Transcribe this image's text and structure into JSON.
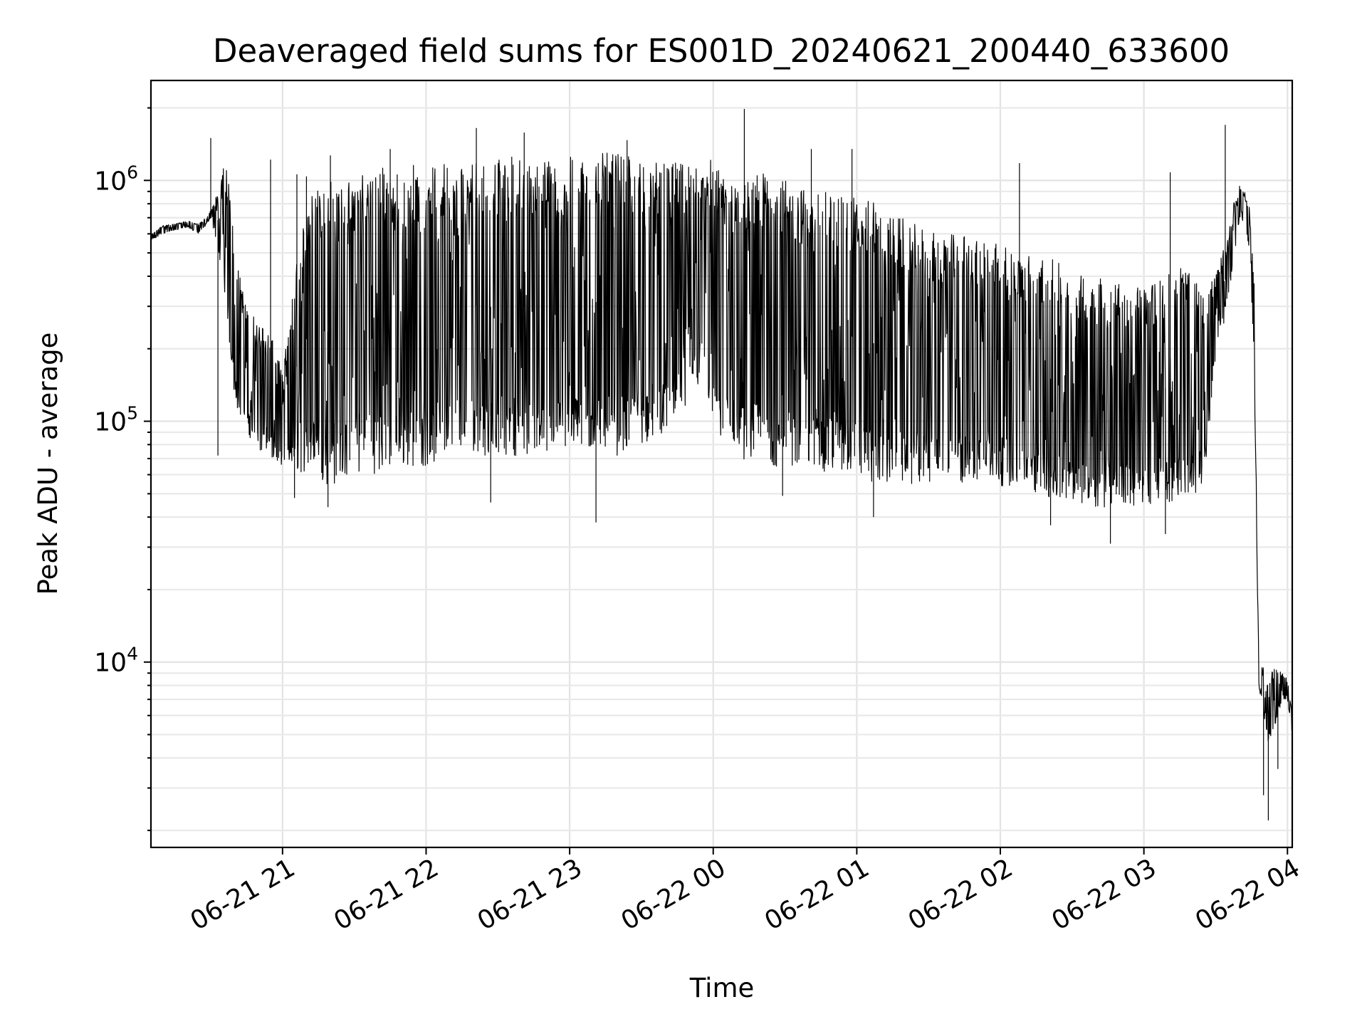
{
  "chart_data": {
    "type": "line",
    "title": "Deaveraged field sums for ES001D_20240621_200440_633600",
    "xlabel": "Time",
    "ylabel": "Peak ADU - average",
    "yscale": "log",
    "xlim": [
      "2024-06-21 20:05",
      "2024-06-22 04:02"
    ],
    "ylim": [
      1700,
      2600000
    ],
    "grid": true,
    "line_color": "#000000",
    "x_ticks": [
      {
        "value": "2024-06-21 21:00",
        "label": "06-21 21"
      },
      {
        "value": "2024-06-21 22:00",
        "label": "06-21 22"
      },
      {
        "value": "2024-06-21 23:00",
        "label": "06-21 23"
      },
      {
        "value": "2024-06-22 00:00",
        "label": "06-22 00"
      },
      {
        "value": "2024-06-22 01:00",
        "label": "06-22 01"
      },
      {
        "value": "2024-06-22 02:00",
        "label": "06-22 02"
      },
      {
        "value": "2024-06-22 03:00",
        "label": "06-22 03"
      },
      {
        "value": "2024-06-22 04:00",
        "label": "06-22 04"
      }
    ],
    "y_ticks": [
      {
        "value": 10000,
        "base": "10",
        "exponent": "4"
      },
      {
        "value": 100000,
        "base": "10",
        "exponent": "5"
      },
      {
        "value": 1000000,
        "base": "10",
        "exponent": "6"
      }
    ],
    "series": [
      {
        "x": [
          "2024-06-21 20:05",
          "2024-06-21 20:10",
          "2024-06-21 20:15",
          "2024-06-21 20:20",
          "2024-06-21 20:25",
          "2024-06-21 20:28",
          "2024-06-21 20:30",
          "2024-06-21 20:33",
          "2024-06-21 20:35",
          "2024-06-21 20:38",
          "2024-06-21 20:40",
          "2024-06-21 20:45",
          "2024-06-21 20:50",
          "2024-06-21 20:55",
          "2024-06-21 21:00",
          "2024-06-21 21:05",
          "2024-06-21 21:10",
          "2024-06-21 21:15",
          "2024-06-21 21:20",
          "2024-06-21 21:25",
          "2024-06-21 21:30",
          "2024-06-21 21:35",
          "2024-06-21 21:40",
          "2024-06-21 21:45",
          "2024-06-21 21:50",
          "2024-06-21 21:55",
          "2024-06-21 22:00",
          "2024-06-21 22:05",
          "2024-06-21 22:10",
          "2024-06-21 22:15",
          "2024-06-21 22:20",
          "2024-06-21 22:25",
          "2024-06-21 22:30",
          "2024-06-21 22:35",
          "2024-06-21 22:40",
          "2024-06-21 22:45",
          "2024-06-21 22:50",
          "2024-06-21 22:55",
          "2024-06-21 23:00",
          "2024-06-21 23:05",
          "2024-06-21 23:10",
          "2024-06-21 23:15",
          "2024-06-21 23:20",
          "2024-06-21 23:25",
          "2024-06-21 23:30",
          "2024-06-21 23:35",
          "2024-06-21 23:40",
          "2024-06-21 23:45",
          "2024-06-21 23:50",
          "2024-06-21 23:55",
          "2024-06-22 00:00",
          "2024-06-22 00:05",
          "2024-06-22 00:10",
          "2024-06-22 00:15",
          "2024-06-22 00:20",
          "2024-06-22 00:25",
          "2024-06-22 00:30",
          "2024-06-22 00:35",
          "2024-06-22 00:40",
          "2024-06-22 00:45",
          "2024-06-22 00:50",
          "2024-06-22 00:55",
          "2024-06-22 01:00",
          "2024-06-22 01:05",
          "2024-06-22 01:10",
          "2024-06-22 01:15",
          "2024-06-22 01:20",
          "2024-06-22 01:25",
          "2024-06-22 01:30",
          "2024-06-22 01:35",
          "2024-06-22 01:40",
          "2024-06-22 01:45",
          "2024-06-22 01:50",
          "2024-06-22 01:55",
          "2024-06-22 02:00",
          "2024-06-22 02:05",
          "2024-06-22 02:10",
          "2024-06-22 02:15",
          "2024-06-22 02:20",
          "2024-06-22 02:25",
          "2024-06-22 02:30",
          "2024-06-22 02:35",
          "2024-06-22 02:40",
          "2024-06-22 02:45",
          "2024-06-22 02:50",
          "2024-06-22 02:55",
          "2024-06-22 03:00",
          "2024-06-22 03:05",
          "2024-06-22 03:10",
          "2024-06-22 03:15",
          "2024-06-22 03:20",
          "2024-06-22 03:25",
          "2024-06-22 03:30",
          "2024-06-22 03:35",
          "2024-06-22 03:38",
          "2024-06-22 03:40",
          "2024-06-22 03:42",
          "2024-06-22 03:44",
          "2024-06-22 03:46",
          "2024-06-22 03:48",
          "2024-06-22 03:50",
          "2024-06-22 03:52",
          "2024-06-22 03:54",
          "2024-06-22 03:56",
          "2024-06-22 03:58",
          "2024-06-22 04:00",
          "2024-06-22 04:02"
        ],
        "low": [
          560000,
          600000,
          620000,
          640000,
          600000,
          650000,
          700000,
          520000,
          400000,
          200000,
          120000,
          90000,
          75000,
          70000,
          65000,
          62000,
          60000,
          60000,
          52000,
          58000,
          60000,
          62000,
          60000,
          62000,
          65000,
          64000,
          65000,
          68000,
          72000,
          75000,
          75000,
          72000,
          72000,
          72000,
          72000,
          72000,
          72000,
          72000,
          75000,
          75000,
          75000,
          75000,
          72000,
          75000,
          80000,
          85000,
          90000,
          95000,
          110000,
          150000,
          85000,
          80000,
          70000,
          68000,
          70000,
          65000,
          63000,
          63000,
          62000,
          62000,
          60000,
          58000,
          58000,
          55000,
          55000,
          55000,
          55000,
          55000,
          55000,
          55000,
          55000,
          54000,
          54000,
          55000,
          54000,
          53000,
          52000,
          50000,
          48000,
          46000,
          45000,
          44000,
          44000,
          44000,
          44000,
          44000,
          45000,
          45000,
          46000,
          48000,
          48000,
          55000,
          180000,
          300000,
          500000,
          700000,
          650000,
          500000,
          200000,
          8000,
          6000,
          4500,
          5000,
          6000,
          7000,
          7000,
          5000
        ],
        "high": [
          600000,
          650000,
          660000,
          680000,
          660000,
          700000,
          750000,
          900000,
          1300000,
          950000,
          500000,
          300000,
          260000,
          230000,
          160000,
          400000,
          800000,
          1000000,
          1050000,
          950000,
          1100000,
          1100000,
          1150000,
          1150000,
          1100000,
          1180000,
          1200000,
          1180000,
          1200000,
          1200000,
          1230000,
          1230000,
          1250000,
          1280000,
          1250000,
          1200000,
          1230000,
          1250000,
          1250000,
          1260000,
          1300000,
          1300000,
          1300000,
          1250000,
          1250000,
          1200000,
          1200000,
          1180000,
          1200000,
          1250000,
          1220000,
          1100000,
          1050000,
          1000000,
          1100000,
          1000000,
          1000000,
          950000,
          900000,
          900000,
          900000,
          900000,
          850000,
          850000,
          750000,
          700000,
          700000,
          650000,
          620000,
          600000,
          600000,
          600000,
          600000,
          600000,
          550000,
          500000,
          500000,
          500000,
          480000,
          450000,
          420000,
          400000,
          400000,
          400000,
          380000,
          370000,
          360000,
          380000,
          420000,
          450000,
          400000,
          350000,
          400000,
          600000,
          850000,
          950000,
          900000,
          800000,
          400000,
          10000,
          9500,
          8800,
          9500,
          9200,
          9000,
          8500,
          6000
        ],
        "spikes": [
          {
            "x": "2024-06-21 20:30",
            "y": 1500000
          },
          {
            "x": "2024-06-21 20:55",
            "y": 1220000
          },
          {
            "x": "2024-06-21 21:06",
            "y": 1060000
          },
          {
            "x": "2024-06-21 21:20",
            "y": 1270000
          },
          {
            "x": "2024-06-21 21:45",
            "y": 1350000
          },
          {
            "x": "2024-06-21 22:21",
            "y": 1650000
          },
          {
            "x": "2024-06-21 22:41",
            "y": 1580000
          },
          {
            "x": "2024-06-21 23:24",
            "y": 1470000
          },
          {
            "x": "2024-06-22 00:13",
            "y": 1980000
          },
          {
            "x": "2024-06-22 00:41",
            "y": 1350000
          },
          {
            "x": "2024-06-22 00:58",
            "y": 1350000
          },
          {
            "x": "2024-06-22 02:08",
            "y": 1180000
          },
          {
            "x": "2024-06-22 03:11",
            "y": 1080000
          },
          {
            "x": "2024-06-22 03:34",
            "y": 1700000
          },
          {
            "x": "2024-06-21 20:35",
            "y": 1050000
          },
          {
            "x": "2024-06-21 21:10",
            "y": 1040000
          }
        ],
        "dips": [
          {
            "x": "2024-06-21 20:33",
            "y": 72000
          },
          {
            "x": "2024-06-21 21:05",
            "y": 48000
          },
          {
            "x": "2024-06-21 21:19",
            "y": 44000
          },
          {
            "x": "2024-06-21 22:27",
            "y": 46000
          },
          {
            "x": "2024-06-21 23:11",
            "y": 38000
          },
          {
            "x": "2024-06-22 00:29",
            "y": 49000
          },
          {
            "x": "2024-06-22 01:07",
            "y": 40000
          },
          {
            "x": "2024-06-22 02:21",
            "y": 37000
          },
          {
            "x": "2024-06-22 02:46",
            "y": 31000
          },
          {
            "x": "2024-06-22 03:09",
            "y": 34000
          },
          {
            "x": "2024-06-22 03:52",
            "y": 2200
          },
          {
            "x": "2024-06-22 03:50",
            "y": 2800
          },
          {
            "x": "2024-06-22 03:56",
            "y": 3600
          }
        ]
      }
    ]
  }
}
